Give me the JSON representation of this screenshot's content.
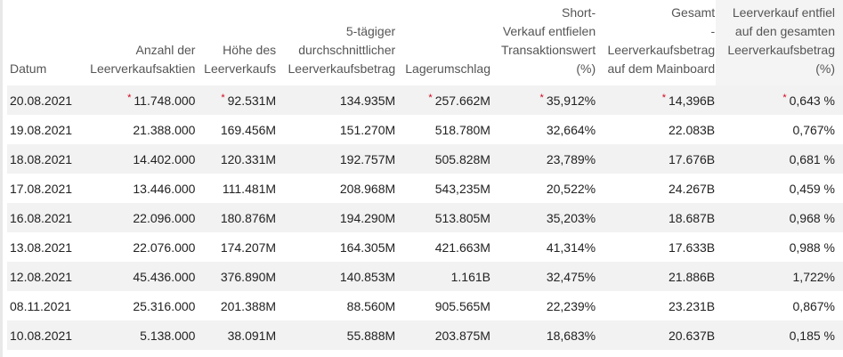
{
  "headers": [
    [
      "Datum"
    ],
    [
      "Anzahl der",
      "Leerverkaufsaktien"
    ],
    [
      "Höhe des",
      "Leerverkaufs"
    ],
    [
      "5-tägiger",
      "durchschnittlicher",
      "Leerverkaufsbetrag"
    ],
    [
      "Lagerumschlag"
    ],
    [
      "Short-",
      "Verkauf entfielen",
      "Transaktionswert",
      "(%)"
    ],
    [
      "Gesamt",
      "-",
      "Leerverkaufsbetrag",
      "auf dem Mainboard"
    ],
    [
      "Leerverkauf entfiel",
      "auf den gesamten",
      "Leerverkaufsbetrag",
      "(%)"
    ]
  ],
  "star_marker": "*",
  "star_color": "#d0021b",
  "rows": [
    {
      "cells": [
        "20.08.2021",
        "11.748.000",
        "92.531M",
        "134.935M",
        "257.662M",
        "35,912%",
        "14,396B",
        "0,643 %"
      ],
      "starred": [
        1,
        2,
        4,
        5,
        6,
        7
      ]
    },
    {
      "cells": [
        "19.08.2021",
        "21.388.000",
        "169.456M",
        "151.270M",
        "518.780M",
        "32,664%",
        "22.083B",
        "0,767%"
      ],
      "starred": []
    },
    {
      "cells": [
        "18.08.2021",
        "14.402.000",
        "120.331M",
        "192.757M",
        "505.828M",
        "23,789%",
        "17.676B",
        "0,681 %"
      ],
      "starred": []
    },
    {
      "cells": [
        "17.08.2021",
        "13.446.000",
        "111.481M",
        "208.968M",
        "543,235M",
        "20,522%",
        "24.267B",
        "0,459 %"
      ],
      "starred": []
    },
    {
      "cells": [
        "16.08.2021",
        "22.096.000",
        "180.876M",
        "194.290M",
        "513.805M",
        "35,203%",
        "18.687B",
        "0,968 %"
      ],
      "starred": []
    },
    {
      "cells": [
        "13.08.2021",
        "22.076.000",
        "174.207M",
        "164.305M",
        "421.663M",
        "41,314%",
        "17.633B",
        "0,988 %"
      ],
      "starred": []
    },
    {
      "cells": [
        "12.08.2021",
        "45.436.000",
        "376.890M",
        "140.853M",
        "1.161B",
        "32,475%",
        "21.886B",
        "1,722%"
      ],
      "starred": []
    },
    {
      "cells": [
        "08.11.2021",
        "25.316.000",
        "201.388M",
        "88.560M",
        "905.565M",
        "22,239%",
        "23.231B",
        "0,867%"
      ],
      "starred": []
    },
    {
      "cells": [
        "10.08.2021",
        "5.138.000",
        "38.091M",
        "55.888M",
        "203.875M",
        "18,683%",
        "20.637B",
        "0,185 %"
      ],
      "starred": []
    }
  ]
}
